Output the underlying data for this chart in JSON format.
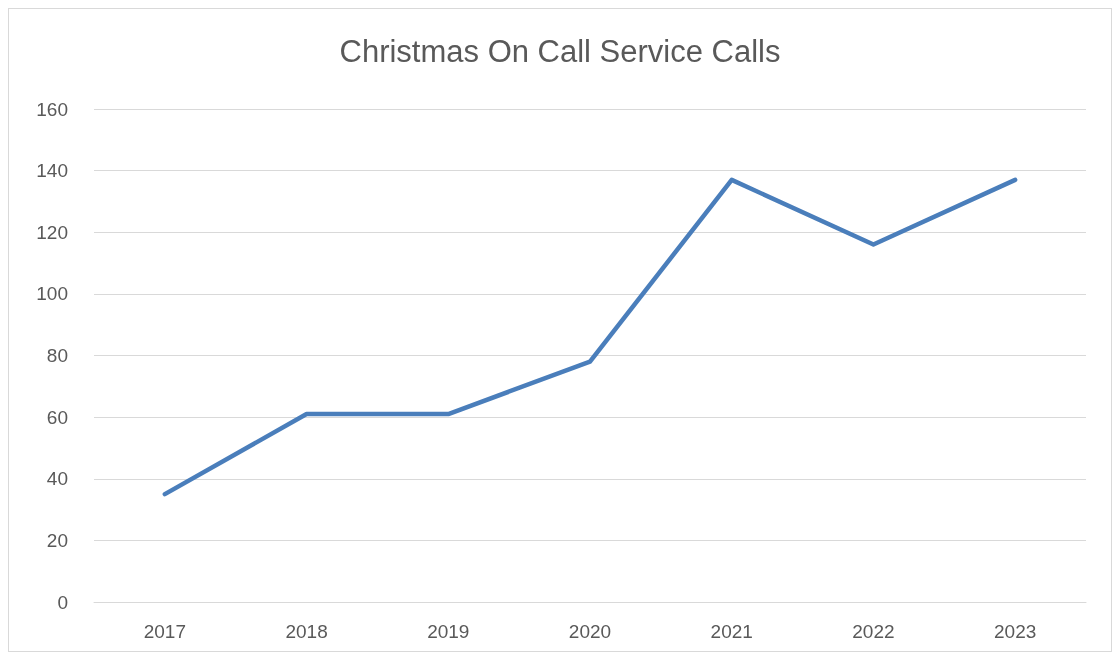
{
  "chart_data": {
    "type": "line",
    "title": "Christmas On Call Service Calls",
    "categories": [
      "2017",
      "2018",
      "2019",
      "2020",
      "2021",
      "2022",
      "2023"
    ],
    "series": [
      {
        "color": "#4a7ebb",
        "values": [
          35,
          61,
          61,
          78,
          137,
          116,
          137
        ]
      }
    ],
    "ylim": [
      0,
      160
    ],
    "yticks": [
      0,
      20,
      40,
      60,
      80,
      100,
      120,
      140,
      160
    ],
    "grid": "y",
    "marker": "none",
    "line_style": "solid"
  }
}
